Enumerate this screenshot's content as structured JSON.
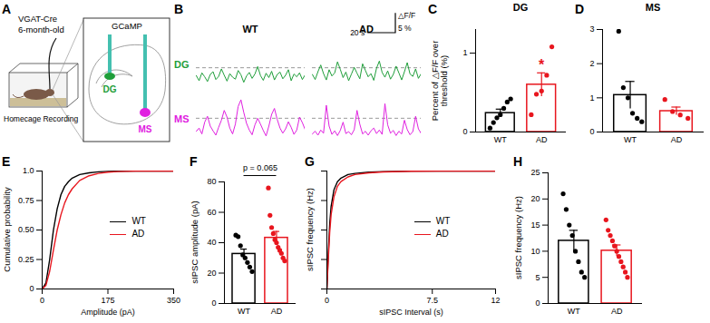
{
  "diagram": {
    "panel": "A",
    "genotype": "VGAT-Cre",
    "age": "6-month-old",
    "setting": "Homecage Recording",
    "indicator": "GCaMP",
    "site1": "DG",
    "site2": "MS",
    "site1_color": "#1f9e3a",
    "site2_color": "#e020e0"
  },
  "chart_data": [
    {
      "panel": "B",
      "type": "line",
      "columns": [
        "WT",
        "AD"
      ],
      "rows": [
        "DG",
        "MS"
      ],
      "tick_labels": false,
      "x": [
        0,
        2,
        4,
        6,
        8,
        10,
        12,
        14,
        16,
        18,
        20,
        22,
        24,
        26,
        28,
        30,
        32,
        34,
        36,
        38,
        40,
        42,
        44,
        46,
        48,
        50,
        52,
        54,
        56,
        58,
        60,
        62,
        64,
        66,
        68,
        70,
        72,
        74,
        76,
        78
      ],
      "xlim": [
        0,
        78
      ],
      "ylim": [
        -3,
        9
      ],
      "scale_bar": {
        "x": 20,
        "x_label": "20 s",
        "y": 5,
        "y_label": "5 %",
        "y_title": "△F/F"
      },
      "series": [
        {
          "row": "DG",
          "column": "WT",
          "color": "#1f9e3a",
          "threshold": 2.5,
          "values": [
            0.5,
            -0.8,
            1.2,
            0.2,
            -1.0,
            0.8,
            1.5,
            -0.5,
            0.3,
            2.2,
            0.6,
            -0.9,
            1.0,
            0.1,
            -0.4,
            1.8,
            0.7,
            -1.2,
            0.4,
            1.3,
            -0.2,
            0.9,
            2.8,
            0.5,
            -0.7,
            1.1,
            0,
            1.6,
            -0.6,
            0.8,
            1.4,
            -0.3,
            0.6,
            2.0,
            -0.8,
            0.9,
            0.2,
            1.2,
            -0.5,
            0.7
          ]
        },
        {
          "row": "DG",
          "column": "AD",
          "color": "#1f9e3a",
          "threshold": 2.5,
          "values": [
            0.8,
            -0.5,
            1.5,
            3.2,
            1.0,
            -0.6,
            2.0,
            0.4,
            1.2,
            4.0,
            2.1,
            0,
            1.4,
            -0.8,
            0.9,
            2.6,
            1.1,
            -0.3,
            3.5,
            1.8,
            0.2,
            1.0,
            -0.7,
            2.4,
            4.2,
            1.3,
            0.1,
            1.7,
            -0.4,
            0.8,
            2.9,
            1.2,
            -0.6,
            1.5,
            3.8,
            0.9,
            0.3,
            2.2,
            -0.2,
            1.0
          ]
        },
        {
          "row": "MS",
          "column": "WT",
          "color": "#e020e0",
          "threshold": 3.5,
          "values": [
            0.2,
            1.0,
            -0.5,
            2.5,
            4.0,
            1.5,
            0.3,
            -0.8,
            1.2,
            3.0,
            5.5,
            3.8,
            1.0,
            -0.5,
            2.0,
            6.5,
            8.2,
            5.0,
            2.2,
            0.5,
            -0.7,
            1.8,
            3.5,
            2.0,
            0.4,
            -1.0,
            1.5,
            4.5,
            6.0,
            3.2,
            1.0,
            -0.3,
            0.8,
            2.6,
            1.2,
            -0.6,
            0.5,
            3.8,
            2.4,
            0.6
          ]
        },
        {
          "row": "MS",
          "column": "AD",
          "color": "#e020e0",
          "threshold": 3.5,
          "values": [
            -0.5,
            0.2,
            -0.8,
            0.5,
            -0.3,
            6.8,
            1.5,
            -0.6,
            0.3,
            -0.9,
            0.4,
            2.5,
            -0.4,
            0.1,
            -0.7,
            0.6,
            5.5,
            2.0,
            -0.5,
            0.2,
            -0.8,
            0.3,
            1.0,
            -0.4,
            0.5,
            -0.6,
            7.2,
            1.8,
            -0.3,
            0.4,
            -0.9,
            0.2,
            -0.5,
            3.0,
            0.6,
            -0.7,
            0.1,
            4.0,
            0.8,
            -0.4
          ]
        }
      ]
    },
    {
      "panel": "C",
      "type": "bar",
      "title": "DG",
      "ylabel": "Percent of △F/F over threshold (%)",
      "categories": [
        "WT",
        "AD"
      ],
      "values": [
        0.24,
        0.6
      ],
      "errors": [
        0.05,
        0.15
      ],
      "points": [
        [
          0.05,
          0.12,
          0.18,
          0.22,
          0.3,
          0.38,
          0.42
        ],
        [
          0.22,
          0.48,
          0.52,
          0.72,
          1.08
        ]
      ],
      "colors": [
        "#000000",
        "#e8161e"
      ],
      "ylim": [
        0,
        1.3
      ],
      "yticks": [
        0,
        1
      ],
      "annotation": {
        "text": "*",
        "at": "AD"
      }
    },
    {
      "panel": "D",
      "type": "bar",
      "title": "MS",
      "categories": [
        "WT",
        "AD"
      ],
      "values": [
        1.08,
        0.61
      ],
      "errors": [
        0.4,
        0.12
      ],
      "points": [
        [
          2.95,
          1.3,
          1.0,
          0.55,
          0.4,
          0.3
        ],
        [
          0.95,
          0.6,
          0.5,
          0.4
        ]
      ],
      "colors": [
        "#000000",
        "#e8161e"
      ],
      "ylim": [
        0,
        3
      ],
      "yticks": [
        0,
        1,
        2,
        3
      ]
    },
    {
      "panel": "E",
      "type": "line",
      "xlabel": "Amplitude (pA)",
      "ylabel": "Cumulative probability",
      "x": [
        0,
        10,
        20,
        30,
        40,
        50,
        60,
        70,
        80,
        100,
        125,
        150,
        175,
        200,
        250,
        300,
        350
      ],
      "series": [
        {
          "name": "WT",
          "color": "#000000",
          "values": [
            0,
            0.05,
            0.25,
            0.5,
            0.68,
            0.8,
            0.87,
            0.91,
            0.94,
            0.97,
            0.985,
            0.993,
            0.997,
            0.999,
            1,
            1,
            1
          ]
        },
        {
          "name": "AD",
          "color": "#e8161e",
          "values": [
            0,
            0.03,
            0.15,
            0.33,
            0.5,
            0.63,
            0.73,
            0.8,
            0.85,
            0.92,
            0.96,
            0.98,
            0.99,
            0.995,
            0.999,
            1,
            1
          ]
        }
      ],
      "xlim": [
        0,
        350
      ],
      "xticks": [
        0,
        175,
        350
      ],
      "ylim": [
        0,
        1
      ],
      "yticks": [
        0,
        0.25,
        {
          "value": 0.5,
          "label": "0.50"
        },
        0.75,
        {
          "value": 1,
          "label": "1.0"
        }
      ],
      "legend": "right"
    },
    {
      "panel": "F",
      "type": "bar",
      "ylabel": "sIPSC amplitude (pA)",
      "categories": [
        "WT",
        "AD"
      ],
      "values": [
        32.6,
        43.2
      ],
      "errors": [
        3.2,
        4.2
      ],
      "points": [
        [
          45,
          44,
          38,
          32,
          30,
          27,
          24,
          21
        ],
        [
          76,
          58,
          50,
          46,
          42,
          40,
          37,
          35,
          33,
          30,
          28
        ]
      ],
      "colors": [
        "#000000",
        "#e8161e"
      ],
      "ylim": [
        0,
        80
      ],
      "yticks": [
        0,
        20,
        40,
        60,
        80
      ],
      "annotation": {
        "text": "p = 0.065"
      }
    },
    {
      "panel": "G",
      "type": "line",
      "xlabel": "sIPSC Interval (s)",
      "ylabel": "sIPSC frequency (Hz)",
      "x": [
        0,
        0.1,
        0.2,
        0.3,
        0.5,
        0.75,
        1,
        1.5,
        2,
        3,
        4,
        6,
        8,
        12
      ],
      "series": [
        {
          "name": "WT",
          "color": "#000000",
          "values": [
            0,
            0.3,
            0.55,
            0.7,
            0.84,
            0.91,
            0.94,
            0.97,
            0.98,
            0.99,
            0.995,
            0.999,
            1,
            1
          ]
        },
        {
          "name": "AD",
          "color": "#e8161e",
          "values": [
            0,
            0.25,
            0.48,
            0.63,
            0.78,
            0.87,
            0.91,
            0.95,
            0.97,
            0.985,
            0.992,
            0.998,
            1,
            1
          ]
        }
      ],
      "xlim": [
        0,
        12
      ],
      "xticks": [
        0,
        7.5,
        12
      ],
      "ylim": [
        0,
        1
      ],
      "yticks": [
        0,
        0.25,
        0.5,
        0.75,
        1
      ],
      "tick_labels": "x",
      "legend": "right"
    },
    {
      "panel": "H",
      "type": "bar",
      "ylabel": "sIPSC frequency (Hz)",
      "categories": [
        "WT",
        "AD"
      ],
      "values": [
        12,
        10.1
      ],
      "errors": [
        2.0,
        1.1
      ],
      "points": [
        [
          21,
          18,
          15,
          13,
          10,
          8,
          6,
          5
        ],
        [
          16,
          14,
          13,
          12,
          11,
          10,
          9,
          8,
          7,
          6,
          5
        ]
      ],
      "colors": [
        "#000000",
        "#e8161e"
      ],
      "ylim": [
        0,
        25
      ],
      "yticks": [
        0,
        5,
        10,
        15,
        20,
        25
      ]
    }
  ]
}
